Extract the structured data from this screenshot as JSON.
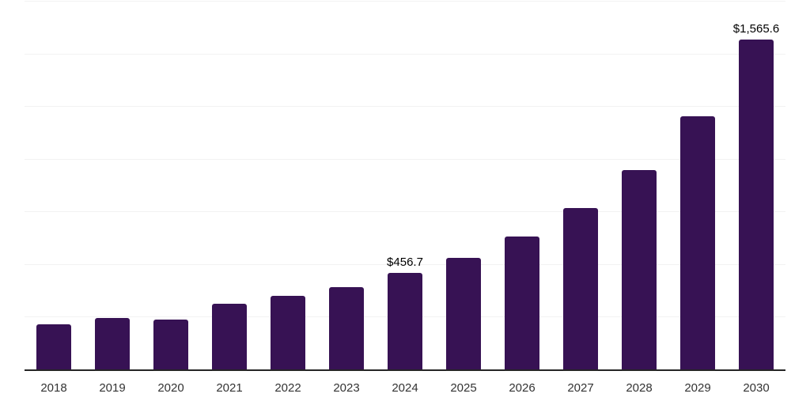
{
  "chart_data": {
    "type": "bar",
    "title": "",
    "xlabel": "",
    "ylabel": "",
    "categories": [
      "2018",
      "2019",
      "2020",
      "2021",
      "2022",
      "2023",
      "2024",
      "2025",
      "2026",
      "2027",
      "2028",
      "2029",
      "2030"
    ],
    "values": [
      215,
      243,
      238,
      310,
      348,
      392,
      456.7,
      531,
      631,
      766,
      946,
      1202,
      1565.6
    ],
    "data_labels": [
      "",
      "",
      "",
      "",
      "",
      "",
      "$456.7",
      "",
      "",
      "",
      "",
      "",
      "$1,565.6"
    ],
    "ylim": [
      0,
      1750
    ],
    "gridline_step": 250,
    "grid": "horizontal",
    "legend": "none",
    "colors": {
      "bar": "#371254",
      "axis": "#262626",
      "gridline": "#f2f2f2",
      "tick_label": "#333333",
      "data_label": "#000000",
      "background": "#ffffff"
    }
  }
}
